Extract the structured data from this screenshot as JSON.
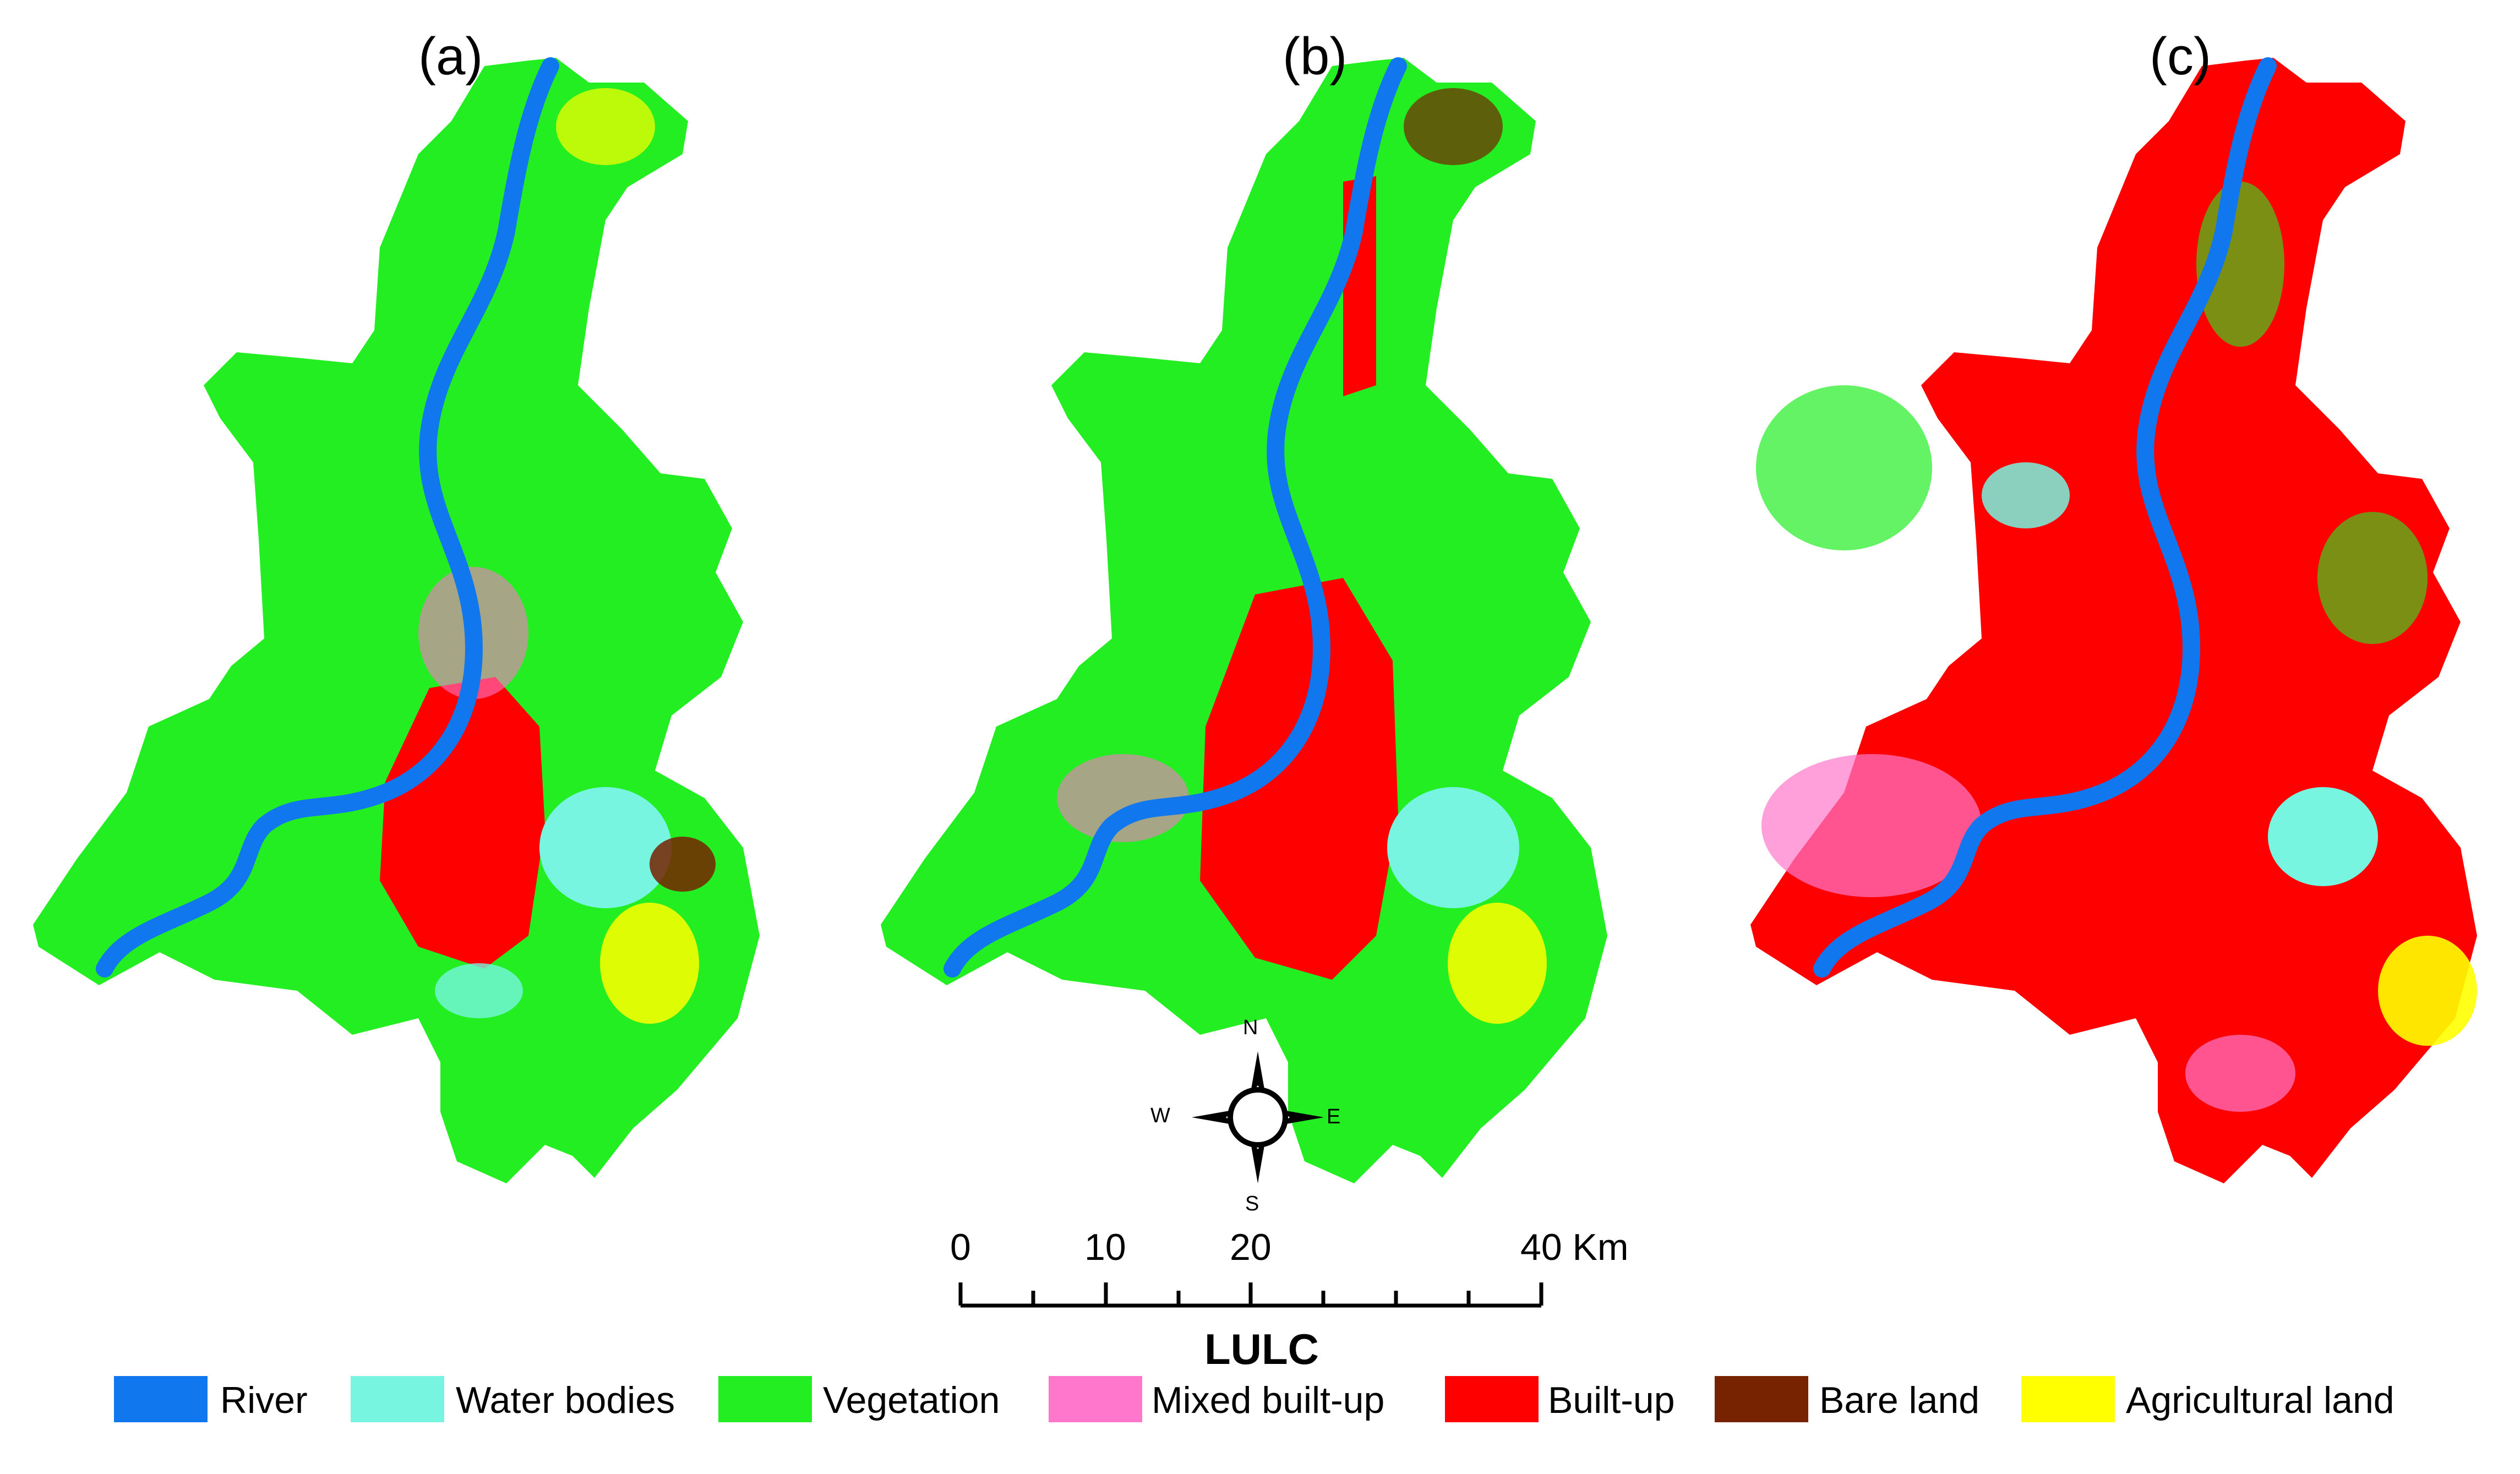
{
  "panels": [
    {
      "label": "(a)",
      "dominant_class": "Vegetation"
    },
    {
      "label": "(b)",
      "dominant_class": "Vegetation"
    },
    {
      "label": "(c)",
      "dominant_class": "Built-up"
    }
  ],
  "compass": {
    "north": "N",
    "south": "S",
    "east": "E",
    "west": "W"
  },
  "scale_bar": {
    "labels": [
      "0",
      "10",
      "20",
      "40 Km"
    ],
    "unit": "Km"
  },
  "legend": {
    "title": "LULC",
    "items": [
      {
        "label": "River",
        "color": "#1177ee"
      },
      {
        "label": "Water bodies",
        "color": "#77f5e0"
      },
      {
        "label": "Vegetation",
        "color": "#22ee22"
      },
      {
        "label": "Mixed built-up",
        "color": "#ff77cc"
      },
      {
        "label": "Built-up",
        "color": "#ff0000"
      },
      {
        "label": "Bare land",
        "color": "#772200"
      },
      {
        "label": "Agricultural land",
        "color": "#ffff00"
      }
    ]
  }
}
